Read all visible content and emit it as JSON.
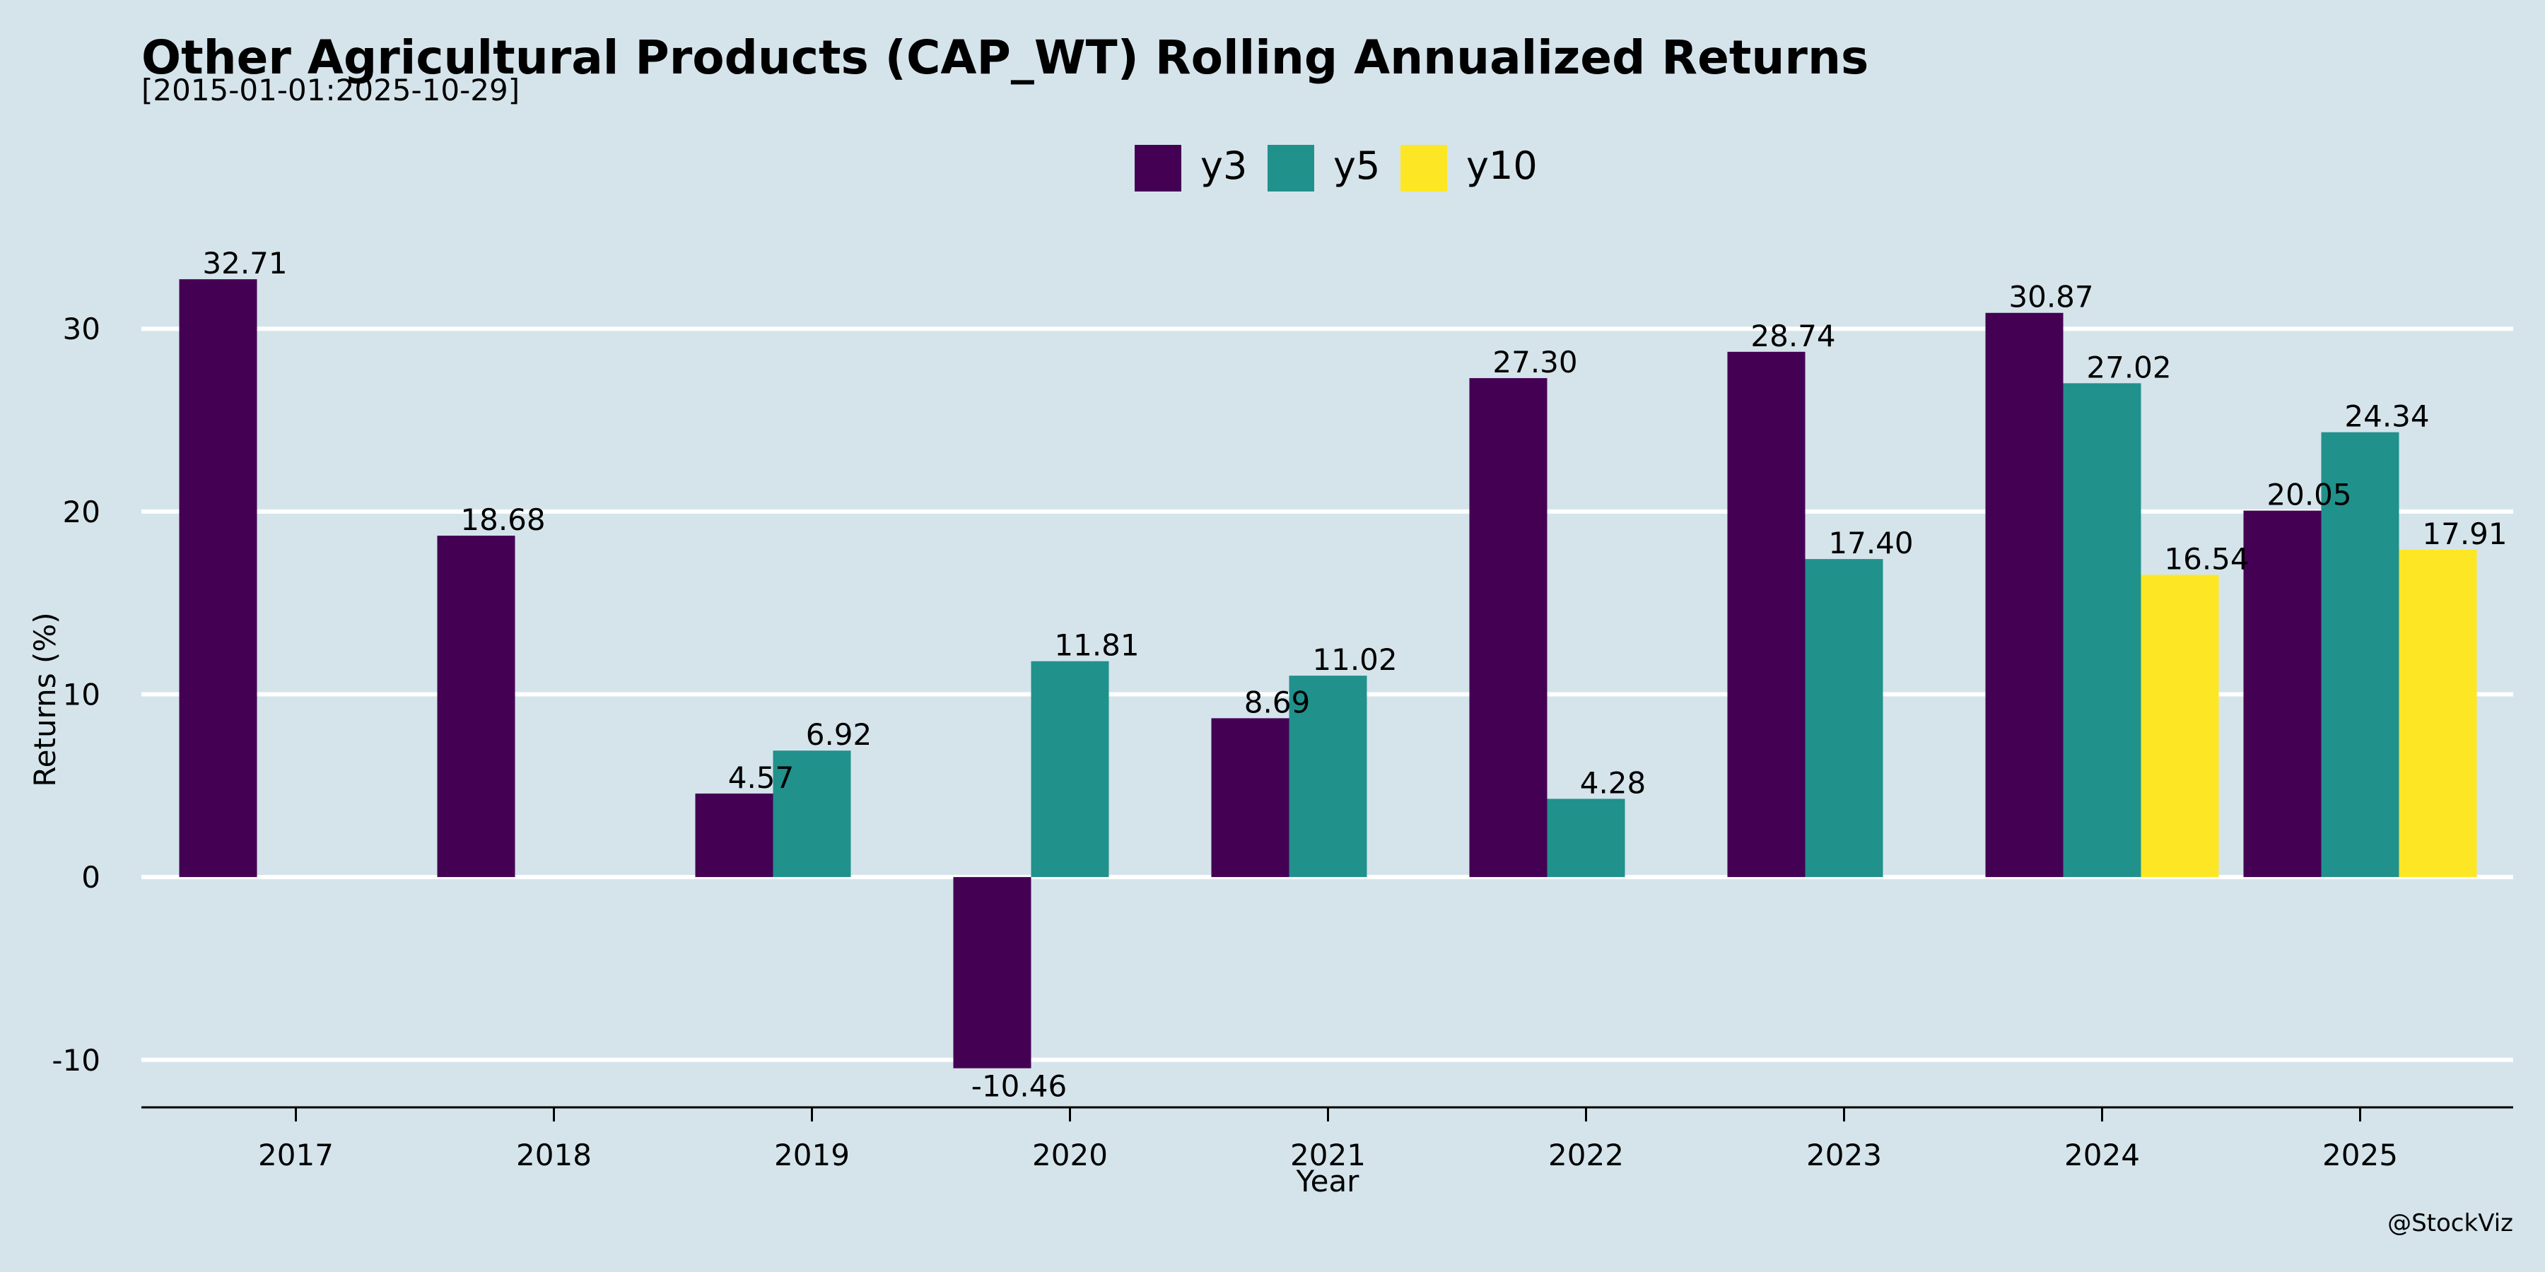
{
  "chart_data": {
    "type": "bar",
    "title": "Other Agricultural Products (CAP_WT) Rolling Annualized Returns",
    "subtitle": "[2015-01-01:2025-10-29]",
    "xlabel": "Year",
    "ylabel": "Returns (%)",
    "credit": "@StockViz",
    "ylim": [
      -12.6,
      35.5
    ],
    "yticks": [
      -10,
      0,
      10,
      20,
      30
    ],
    "grid": "horizontal",
    "legend_position": "top-center",
    "categories": [
      "2017",
      "2018",
      "2019",
      "2020",
      "2021",
      "2022",
      "2023",
      "2024",
      "2025"
    ],
    "series": [
      {
        "name": "y3",
        "color": "#440154",
        "values": [
          32.71,
          18.68,
          4.57,
          -10.46,
          8.69,
          27.3,
          28.74,
          30.87,
          20.05
        ],
        "labels": [
          "32.71",
          "18.68",
          "4.57",
          "-10.46",
          "8.69",
          "27.30",
          "28.74",
          "30.87",
          "20.05"
        ]
      },
      {
        "name": "y5",
        "color": "#21918c",
        "values": [
          null,
          null,
          6.92,
          11.81,
          11.02,
          4.28,
          17.4,
          27.02,
          24.34
        ],
        "labels": [
          null,
          null,
          "6.92",
          "11.81",
          "11.02",
          "4.28",
          "17.40",
          "27.02",
          "24.34"
        ]
      },
      {
        "name": "y10",
        "color": "#fde725",
        "values": [
          null,
          null,
          null,
          null,
          null,
          null,
          null,
          16.54,
          17.91
        ],
        "labels": [
          null,
          null,
          null,
          null,
          null,
          null,
          null,
          "16.54",
          "17.91"
        ]
      }
    ]
  },
  "colors": {
    "background": "#d5e4eb",
    "grid": "#ffffff",
    "text": "#000000"
  }
}
